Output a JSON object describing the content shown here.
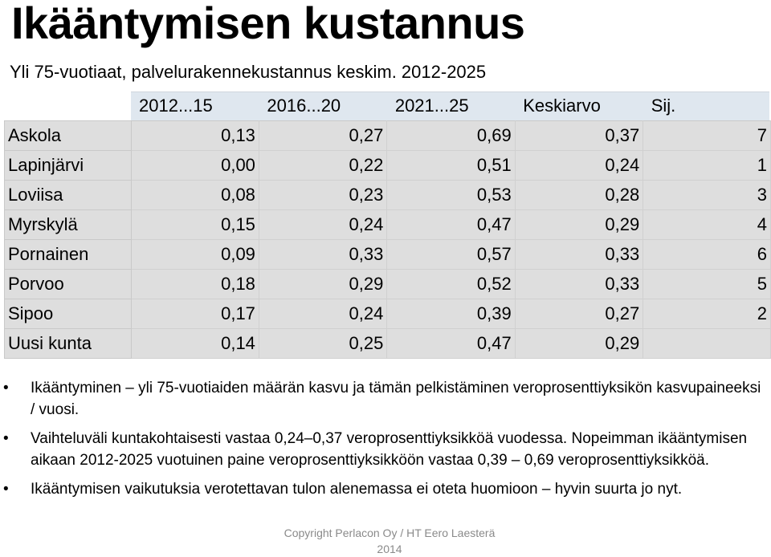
{
  "title": "Ikääntymisen kustannus",
  "subtitle": "Yli 75-vuotiaat, palvelurakennekustannus keskim. 2012-2025",
  "table": {
    "headers": [
      "",
      "2012...15",
      "2016...20",
      "2021...25",
      "Keskiarvo",
      "Sij."
    ],
    "rows": [
      {
        "name": "Askola",
        "v1": "0,13",
        "v2": "0,27",
        "v3": "0,69",
        "avg": "0,37",
        "rank": "7"
      },
      {
        "name": "Lapinjärvi",
        "v1": "0,00",
        "v2": "0,22",
        "v3": "0,51",
        "avg": "0,24",
        "rank": "1"
      },
      {
        "name": "Loviisa",
        "v1": "0,08",
        "v2": "0,23",
        "v3": "0,53",
        "avg": "0,28",
        "rank": "3"
      },
      {
        "name": "Myrskylä",
        "v1": "0,15",
        "v2": "0,24",
        "v3": "0,47",
        "avg": "0,29",
        "rank": "4"
      },
      {
        "name": "Pornainen",
        "v1": "0,09",
        "v2": "0,33",
        "v3": "0,57",
        "avg": "0,33",
        "rank": "6"
      },
      {
        "name": "Porvoo",
        "v1": "0,18",
        "v2": "0,29",
        "v3": "0,52",
        "avg": "0,33",
        "rank": "5"
      },
      {
        "name": "Sipoo",
        "v1": "0,17",
        "v2": "0,24",
        "v3": "0,39",
        "avg": "0,27",
        "rank": "2"
      },
      {
        "name": "Uusi kunta",
        "v1": "0,14",
        "v2": "0,25",
        "v3": "0,47",
        "avg": "0,29",
        "rank": ""
      }
    ]
  },
  "bullets": [
    "Ikääntyminen – yli 75-vuotiaiden määrän kasvu ja tämän pelkistäminen veroprosenttiyksikön kasvupaineeksi / vuosi.",
    "Vaihteluväli kuntakohtaisesti vastaa 0,24–0,37 veroprosenttiyksikköä vuodessa. Nopeimman ikääntymisen aikaan 2012-2025 vuotuinen paine veroprosenttiyksikköön vastaa 0,39 – 0,69 veroprosenttiyksikköä.",
    "Ikääntymisen vaikutuksia verotettavan tulon alenemassa ei oteta huomioon – hyvin suurta jo nyt."
  ],
  "bullet_symbol": "•",
  "copyright": "Copyright Perlacon Oy / HT Eero Laesterä 2014"
}
